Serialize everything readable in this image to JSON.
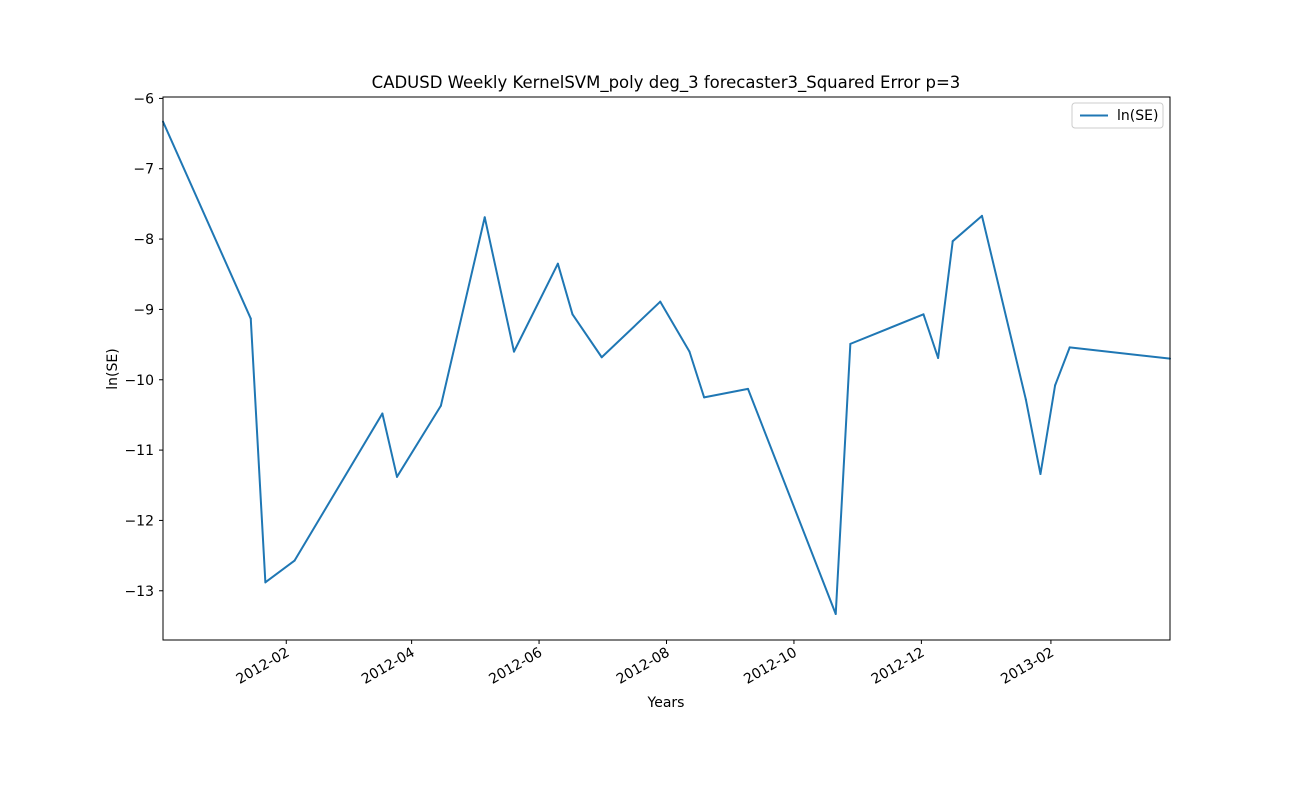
{
  "chart_data": {
    "type": "line",
    "title": "CADUSD Weekly KernelSVM_poly deg_3 forecaster3_Squared Error p=3",
    "xlabel": "Years",
    "ylabel": "ln(SE)",
    "x_scale": "time",
    "xlim": [
      "2011-12-04",
      "2013-03-30"
    ],
    "ylim": [
      -13.7,
      -5.98
    ],
    "x_ticks": [
      "2012-02",
      "2012-04",
      "2012-06",
      "2012-08",
      "2012-10",
      "2012-12",
      "2013-02"
    ],
    "y_ticks": [
      -6,
      -7,
      -8,
      -9,
      -10,
      -11,
      -12,
      -13
    ],
    "grid": false,
    "legend": "upper right",
    "series": [
      {
        "name": "ln(SE)",
        "color": "#1f77b4",
        "points": [
          {
            "x": "2011-12-04",
            "y": -6.33
          },
          {
            "x": "2012-01-15",
            "y": -9.13
          },
          {
            "x": "2012-01-22",
            "y": -12.88
          },
          {
            "x": "2012-02-05",
            "y": -12.57
          },
          {
            "x": "2012-03-18",
            "y": -10.48
          },
          {
            "x": "2012-03-25",
            "y": -11.38
          },
          {
            "x": "2012-04-15",
            "y": -10.37
          },
          {
            "x": "2012-05-06",
            "y": -7.69
          },
          {
            "x": "2012-05-20",
            "y": -9.6
          },
          {
            "x": "2012-06-10",
            "y": -8.35
          },
          {
            "x": "2012-06-17",
            "y": -9.07
          },
          {
            "x": "2012-07-01",
            "y": -9.68
          },
          {
            "x": "2012-07-29",
            "y": -8.89
          },
          {
            "x": "2012-08-12",
            "y": -9.6
          },
          {
            "x": "2012-08-19",
            "y": -10.25
          },
          {
            "x": "2012-09-09",
            "y": -10.13
          },
          {
            "x": "2012-10-21",
            "y": -13.33
          },
          {
            "x": "2012-10-28",
            "y": -9.49
          },
          {
            "x": "2012-12-02",
            "y": -9.07
          },
          {
            "x": "2012-12-09",
            "y": -9.69
          },
          {
            "x": "2012-12-16",
            "y": -8.03
          },
          {
            "x": "2012-12-30",
            "y": -7.67
          },
          {
            "x": "2013-01-20",
            "y": -10.28
          },
          {
            "x": "2013-01-27",
            "y": -11.34
          },
          {
            "x": "2013-02-03",
            "y": -10.08
          },
          {
            "x": "2013-02-10",
            "y": -9.54
          },
          {
            "x": "2013-03-30",
            "y": -9.7
          }
        ]
      }
    ]
  }
}
